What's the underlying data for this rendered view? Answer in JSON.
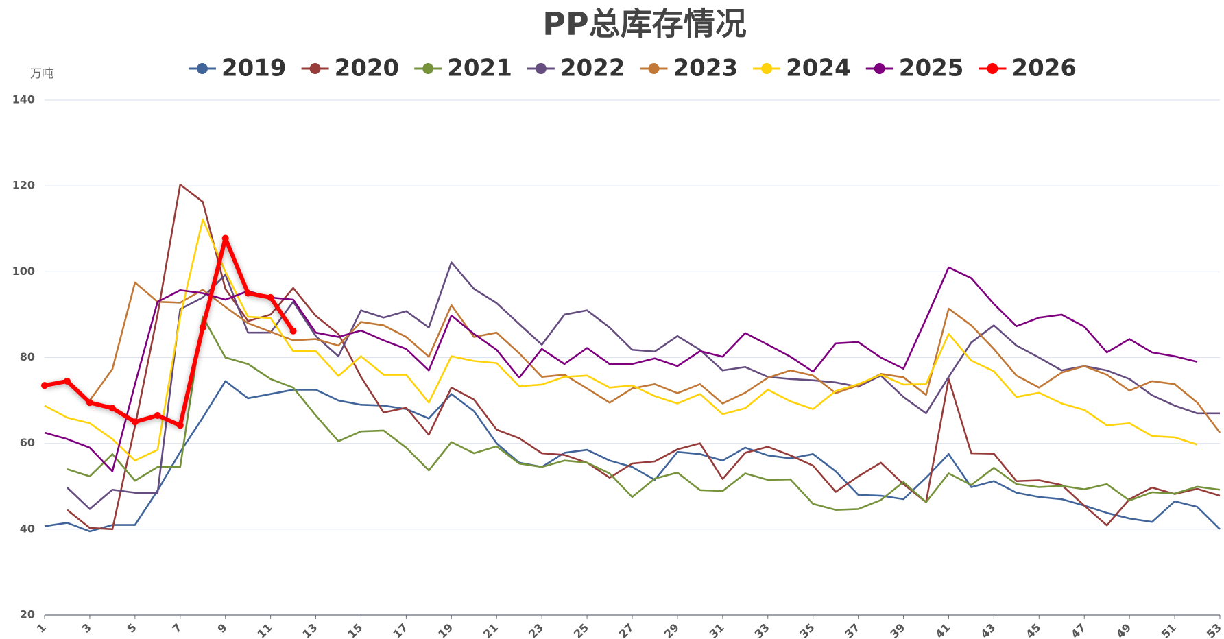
{
  "chart_data": {
    "type": "line",
    "title": "PP总库存情况",
    "y_unit": "万吨",
    "x": [
      1,
      2,
      3,
      4,
      5,
      6,
      7,
      8,
      9,
      10,
      11,
      12,
      13,
      14,
      15,
      16,
      17,
      18,
      19,
      20,
      21,
      22,
      23,
      24,
      25,
      26,
      27,
      28,
      29,
      30,
      31,
      32,
      33,
      34,
      35,
      36,
      37,
      38,
      39,
      40,
      41,
      42,
      43,
      44,
      45,
      46,
      47,
      48,
      49,
      50,
      51,
      52,
      53
    ],
    "xlim": [
      1,
      53
    ],
    "xticks": [
      1,
      3,
      5,
      7,
      9,
      11,
      13,
      15,
      17,
      19,
      21,
      23,
      25,
      27,
      29,
      31,
      33,
      35,
      37,
      39,
      41,
      43,
      45,
      47,
      49,
      51,
      53
    ],
    "ylim": [
      20,
      140
    ],
    "yticks": [
      20,
      40,
      60,
      80,
      100,
      120,
      140
    ],
    "grid": true,
    "series": [
      {
        "name": "2019",
        "color": "#41659a",
        "values": [
          40.7,
          41.5,
          39.5,
          41,
          41,
          49,
          58,
          66,
          74.5,
          70.5,
          71.5,
          72.5,
          72.5,
          70,
          69,
          68.8,
          68,
          65.8,
          71.5,
          67.5,
          60,
          55.5,
          54.5,
          57.8,
          58.5,
          56,
          54.5,
          51.5,
          58,
          57.5,
          56,
          59,
          57.2,
          56.5,
          57.5,
          53.5,
          48,
          47.8,
          47,
          52,
          57.5,
          49.8,
          51.2,
          48.5,
          47.5,
          47,
          45.5,
          43.8,
          42.5,
          41.7,
          46.5,
          45.2,
          40
        ]
      },
      {
        "name": "2020",
        "color": "#963c3a",
        "values": [
          null,
          44.5,
          40.3,
          40,
          64,
          90,
          120.3,
          116.3,
          96,
          88.5,
          90,
          96.2,
          89.7,
          85.5,
          75.5,
          67.2,
          68.3,
          62,
          73,
          70.2,
          63.2,
          61.2,
          57.7,
          57.3,
          55.5,
          52,
          55.3,
          55.8,
          58.6,
          60,
          51.7,
          57.8,
          59.2,
          57.2,
          54.8,
          48.7,
          52.3,
          55.5,
          50.5,
          46.3,
          75,
          57.7,
          57.6,
          51.2,
          51.4,
          50.3,
          45.5,
          40.9,
          47,
          49.7,
          48.2,
          49.4,
          47.8
        ]
      },
      {
        "name": "2021",
        "color": "#76933c",
        "values": [
          null,
          54,
          52.3,
          57.5,
          51.3,
          54.5,
          54.5,
          89.5,
          80,
          78.5,
          75,
          73,
          66.5,
          60.5,
          62.8,
          63,
          59,
          53.7,
          60.3,
          57.7,
          59.3,
          55.3,
          54.5,
          56,
          55.5,
          53,
          47.5,
          51.8,
          53.2,
          49.1,
          48.9,
          53,
          51.5,
          51.6,
          45.9,
          44.5,
          44.7,
          46.8,
          51,
          46.3,
          53,
          50.3,
          54.3,
          50.5,
          49.8,
          50.1,
          49.3,
          50.5,
          46.7,
          48.6,
          48.3,
          49.9,
          49.2
        ]
      },
      {
        "name": "2022",
        "color": "#654d80",
        "values": [
          null,
          49.7,
          44.7,
          49.2,
          48.5,
          48.5,
          91.3,
          94,
          99.3,
          85.8,
          85.8,
          93,
          85,
          80.3,
          91,
          89.3,
          90.8,
          87,
          102.2,
          96,
          92.7,
          87.8,
          83,
          90,
          91,
          87,
          81.8,
          81.4,
          85,
          81.8,
          77,
          77.8,
          75.5,
          75,
          74.7,
          74.2,
          73.2,
          75.8,
          70.8,
          67,
          75.5,
          83.5,
          87.5,
          82.8,
          80,
          77,
          78,
          77,
          75,
          71.2,
          68.8,
          67,
          67
        ]
      },
      {
        "name": "2023",
        "color": "#c27836",
        "values": [
          null,
          null,
          70,
          77.3,
          97.5,
          93,
          92.8,
          95.8,
          91.8,
          88,
          86,
          84,
          84.3,
          82.8,
          88.3,
          87.5,
          84.8,
          80.2,
          92.2,
          84.8,
          85.8,
          81,
          75.5,
          76,
          72.8,
          69.5,
          72.8,
          73.8,
          71.7,
          73.8,
          69.3,
          71.8,
          75.3,
          77,
          75.8,
          71.7,
          73.5,
          76.2,
          75.4,
          71.3,
          91.4,
          87.5,
          82,
          75.8,
          73,
          76.5,
          78,
          76,
          72.3,
          74.5,
          73.8,
          69.5,
          62.5
        ]
      },
      {
        "name": "2024",
        "color": "#ffd20a",
        "values": [
          68.8,
          66,
          64.7,
          61,
          56,
          58.5,
          89.5,
          112.2,
          100,
          89.5,
          89.2,
          81.5,
          81.5,
          75.7,
          80.3,
          76,
          76,
          69.5,
          80.3,
          79.2,
          78.7,
          73.3,
          73.7,
          75.5,
          75.8,
          73,
          73.5,
          71,
          69.3,
          71.5,
          66.8,
          68.2,
          72.5,
          69.8,
          68,
          72.2,
          73.8,
          76,
          73.7,
          73.8,
          85.5,
          79.3,
          76.8,
          70.8,
          71.8,
          69.3,
          67.8,
          64.2,
          64.7,
          61.7,
          61.4,
          59.7,
          null
        ]
      },
      {
        "name": "2025",
        "color": "#7f007f",
        "values": [
          62.5,
          61,
          59,
          53.5,
          73.8,
          93,
          95.7,
          95,
          93.5,
          95.5,
          94,
          93.5,
          85.8,
          84.8,
          86.3,
          84,
          82,
          77,
          89.8,
          85.5,
          81.8,
          75.3,
          82,
          78.5,
          82.2,
          78.5,
          78.5,
          79.8,
          78,
          81.5,
          80.2,
          85.7,
          83,
          80.2,
          76.7,
          83.3,
          83.6,
          80,
          77.4,
          89,
          101,
          98.5,
          92.5,
          87.3,
          89.3,
          90,
          87.2,
          81.2,
          84.3,
          81.2,
          80.3,
          79,
          null
        ]
      },
      {
        "name": "2026",
        "color": "#ff0000",
        "values": [
          73.5,
          74.5,
          69.5,
          68.2,
          65,
          66.5,
          64.2,
          87,
          107.8,
          95,
          94,
          86.2,
          null,
          null,
          null,
          null,
          null,
          null,
          null,
          null,
          null,
          null,
          null,
          null,
          null,
          null,
          null,
          null,
          null,
          null,
          null,
          null,
          null,
          null,
          null,
          null,
          null,
          null,
          null,
          null,
          null,
          null,
          null,
          null,
          null,
          null,
          null,
          null,
          null,
          null,
          null,
          null,
          null
        ]
      }
    ]
  }
}
